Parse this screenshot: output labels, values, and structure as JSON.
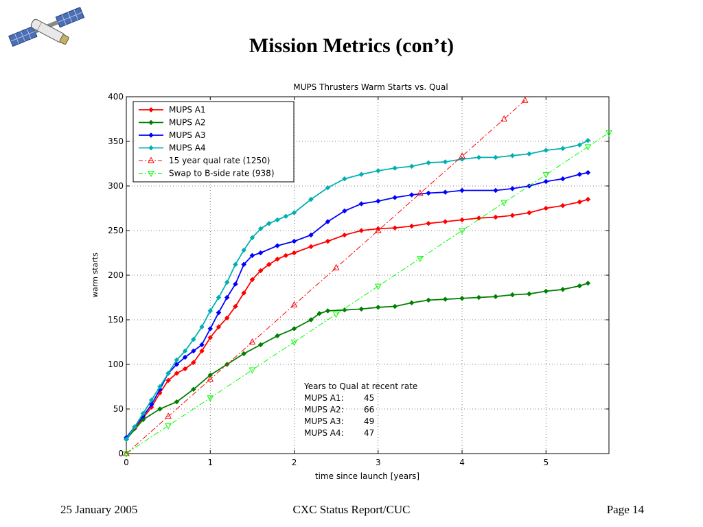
{
  "slide": {
    "title": "Mission Metrics (con’t)",
    "footer_left": "25 January 2005",
    "footer_center": "CXC Status Report/CUC",
    "footer_right": "Page 14",
    "logo_icon": "satellite-icon"
  },
  "chart_data": {
    "type": "line",
    "title": "MUPS Thrusters Warm Starts vs. Qual",
    "xlabel": "time since launch [years]",
    "ylabel": "warm starts",
    "xlim": [
      0,
      5.75
    ],
    "ylim": [
      0,
      400
    ],
    "xticks": [
      0,
      1,
      2,
      3,
      4,
      5
    ],
    "yticks": [
      0,
      50,
      100,
      150,
      200,
      250,
      300,
      350,
      400
    ],
    "grid": true,
    "legend_position": "top-left",
    "series": [
      {
        "name": "MUPS A1",
        "color": "#ff0000",
        "marker": "diamond",
        "style": "solid",
        "x": [
          0,
          0.1,
          0.2,
          0.3,
          0.4,
          0.5,
          0.6,
          0.7,
          0.8,
          0.9,
          1.0,
          1.1,
          1.2,
          1.3,
          1.4,
          1.5,
          1.6,
          1.7,
          1.8,
          1.9,
          2.0,
          2.2,
          2.4,
          2.6,
          2.8,
          3.0,
          3.2,
          3.4,
          3.6,
          3.8,
          4.0,
          4.2,
          4.4,
          4.6,
          4.8,
          5.0,
          5.2,
          5.4,
          5.5
        ],
        "y": [
          16,
          28,
          40,
          52,
          68,
          82,
          90,
          95,
          102,
          115,
          130,
          142,
          152,
          165,
          180,
          195,
          205,
          212,
          218,
          222,
          225,
          232,
          238,
          245,
          250,
          252,
          253,
          255,
          258,
          260,
          262,
          264,
          265,
          267,
          270,
          275,
          278,
          282,
          285
        ]
      },
      {
        "name": "MUPS A2",
        "color": "#008000",
        "marker": "diamond",
        "style": "solid",
        "x": [
          0,
          0.2,
          0.4,
          0.6,
          0.8,
          1.0,
          1.2,
          1.4,
          1.6,
          1.8,
          2.0,
          2.2,
          2.3,
          2.4,
          2.6,
          2.8,
          3.0,
          3.2,
          3.4,
          3.6,
          3.8,
          4.0,
          4.2,
          4.4,
          4.6,
          4.8,
          5.0,
          5.2,
          5.4,
          5.5
        ],
        "y": [
          16,
          38,
          50,
          58,
          72,
          88,
          100,
          112,
          122,
          132,
          140,
          150,
          157,
          160,
          161,
          162,
          164,
          165,
          169,
          172,
          173,
          174,
          175,
          176,
          178,
          179,
          182,
          184,
          188,
          191
        ]
      },
      {
        "name": "MUPS A3",
        "color": "#0000ff",
        "marker": "diamond",
        "style": "solid",
        "x": [
          0,
          0.1,
          0.2,
          0.3,
          0.4,
          0.5,
          0.6,
          0.7,
          0.8,
          0.9,
          1.0,
          1.1,
          1.2,
          1.3,
          1.4,
          1.5,
          1.6,
          1.8,
          2.0,
          2.2,
          2.4,
          2.6,
          2.8,
          3.0,
          3.2,
          3.4,
          3.6,
          3.8,
          4.0,
          4.4,
          4.6,
          4.8,
          5.0,
          5.2,
          5.4,
          5.5
        ],
        "y": [
          18,
          30,
          42,
          55,
          72,
          90,
          100,
          108,
          115,
          122,
          140,
          158,
          175,
          190,
          212,
          222,
          225,
          233,
          238,
          245,
          260,
          272,
          280,
          283,
          287,
          290,
          292,
          293,
          295,
          295,
          297,
          300,
          305,
          308,
          313,
          315
        ]
      },
      {
        "name": "MUPS A4",
        "color": "#00b0b0",
        "marker": "diamond",
        "style": "solid",
        "x": [
          0,
          0.1,
          0.2,
          0.3,
          0.4,
          0.5,
          0.6,
          0.7,
          0.8,
          0.9,
          1.0,
          1.1,
          1.2,
          1.3,
          1.4,
          1.5,
          1.6,
          1.7,
          1.8,
          1.9,
          2.0,
          2.2,
          2.4,
          2.6,
          2.8,
          3.0,
          3.2,
          3.4,
          3.6,
          3.8,
          4.0,
          4.2,
          4.4,
          4.6,
          4.8,
          5.0,
          5.2,
          5.4,
          5.5
        ],
        "y": [
          16,
          30,
          45,
          60,
          75,
          90,
          105,
          115,
          128,
          142,
          160,
          175,
          192,
          212,
          228,
          242,
          252,
          258,
          262,
          266,
          270,
          285,
          298,
          308,
          313,
          317,
          320,
          322,
          326,
          327,
          330,
          332,
          332,
          334,
          336,
          340,
          342,
          346,
          351
        ]
      },
      {
        "name": "15 year qual rate (1250)",
        "color": "#ff0000",
        "marker": "triangle-up",
        "style": "dashdot",
        "x": [
          0,
          0.5,
          1.0,
          1.5,
          2.0,
          2.5,
          3.0,
          3.5,
          4.0,
          4.5,
          4.75
        ],
        "y": [
          0,
          41.7,
          83.3,
          125,
          166.7,
          208.3,
          250,
          291.7,
          333.3,
          375,
          396
        ]
      },
      {
        "name": "Swap to B-side rate (938)",
        "color": "#00ff00",
        "marker": "triangle-down",
        "style": "dashdot",
        "x": [
          0,
          0.5,
          1.0,
          1.5,
          2.0,
          2.5,
          3.0,
          3.5,
          4.0,
          4.5,
          5.0,
          5.5,
          5.75
        ],
        "y": [
          0,
          31.3,
          62.5,
          93.8,
          125,
          156.3,
          187.6,
          218.8,
          250,
          281.4,
          312.7,
          343.9,
          359.6
        ]
      }
    ],
    "annotation": {
      "title": "Years to Qual at recent rate",
      "rows": [
        {
          "label": "MUPS A1:",
          "value": "45"
        },
        {
          "label": "MUPS A2:",
          "value": "66"
        },
        {
          "label": "MUPS A3:",
          "value": "49"
        },
        {
          "label": "MUPS A4:",
          "value": "47"
        }
      ]
    }
  }
}
